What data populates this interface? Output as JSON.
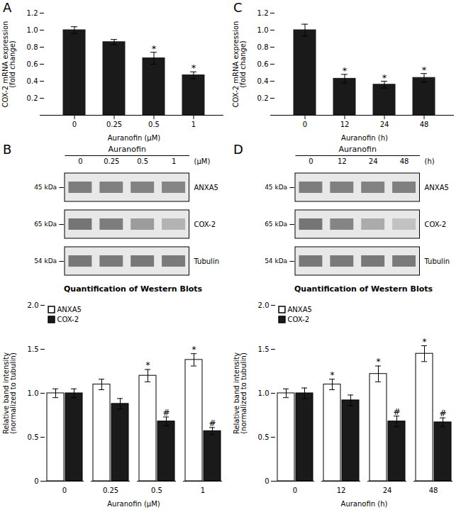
{
  "chart_data": [
    {
      "type": "bar",
      "panel_label": "A",
      "categories": [
        "0",
        "0.25",
        "0.5",
        "1"
      ],
      "values": [
        1.0,
        0.86,
        0.67,
        0.47
      ],
      "errors": [
        0.04,
        0.03,
        0.07,
        0.04
      ],
      "significant": [
        false,
        false,
        true,
        true
      ],
      "significance_label": "*",
      "color": "#1a1a1a",
      "xlabel": "Auranofin (μM)",
      "ylabel": "COX-2 mRNA expression\n(fold change)",
      "ylim": [
        0,
        1.2
      ],
      "yticks": [
        {
          "value": 0,
          "label": null
        },
        0.2,
        0.4,
        0.6,
        0.8,
        {
          "value": 1.0,
          "label": "1.0"
        },
        1.2
      ]
    },
    {
      "type": "bar",
      "panel_label": "C",
      "categories": [
        "0",
        "12",
        "24",
        "48"
      ],
      "values": [
        1.0,
        0.43,
        0.36,
        0.44
      ],
      "errors": [
        0.07,
        0.05,
        0.04,
        0.05
      ],
      "significant": [
        false,
        true,
        true,
        true
      ],
      "significance_label": "*",
      "color": "#1a1a1a",
      "xlabel": "Auranofin (h)",
      "ylabel": "COX-2 mRNA expression\n(fold change)",
      "ylim": [
        0,
        1.2
      ],
      "yticks": [
        {
          "value": 0,
          "label": null
        },
        0.2,
        0.4,
        0.6,
        0.8,
        {
          "value": 1.0,
          "label": "1.0"
        },
        1.2
      ]
    },
    {
      "type": "western_blot",
      "panel_label": "B",
      "header": "Auranofin",
      "lanes": [
        "0",
        "0.25",
        "0.5",
        "1"
      ],
      "unit": "(μM)",
      "bands": [
        {
          "name": "ANXA5",
          "kda": "45 kDa",
          "intensities": [
            0.85,
            0.83,
            0.82,
            0.8
          ]
        },
        {
          "name": "COX-2",
          "kda": "65 kDa",
          "intensities": [
            0.9,
            0.85,
            0.65,
            0.5
          ]
        },
        {
          "name": "Tubulin",
          "kda": "54 kDa",
          "intensities": [
            0.88,
            0.87,
            0.88,
            0.87
          ]
        }
      ]
    },
    {
      "type": "western_blot",
      "panel_label": "D",
      "header": "Auranofin",
      "lanes": [
        "0",
        "12",
        "24",
        "48"
      ],
      "unit": "(h)",
      "bands": [
        {
          "name": "ANXA5",
          "kda": "45 kDa",
          "intensities": [
            0.85,
            0.83,
            0.82,
            0.83
          ]
        },
        {
          "name": "COX-2",
          "kda": "65 kDa",
          "intensities": [
            0.9,
            0.8,
            0.55,
            0.4
          ]
        },
        {
          "name": "Tubulin",
          "kda": "54 kDa",
          "intensities": [
            0.88,
            0.87,
            0.88,
            0.87
          ]
        }
      ]
    },
    {
      "type": "bar",
      "title": "Quantification of Western Blots",
      "categories": [
        "0",
        "0.25",
        "0.5",
        "1"
      ],
      "series": [
        {
          "name": "ANXA5",
          "color": "#ffffff",
          "values": [
            1.0,
            1.1,
            1.2,
            1.38
          ],
          "errors": [
            0.05,
            0.06,
            0.07,
            0.07
          ],
          "significant": [
            false,
            false,
            true,
            true
          ],
          "significance_label": "*"
        },
        {
          "name": "COX-2",
          "color": "#1a1a1a",
          "values": [
            1.0,
            0.88,
            0.68,
            0.57
          ],
          "errors": [
            0.05,
            0.06,
            0.05,
            0.04
          ],
          "significant": [
            false,
            false,
            true,
            true
          ],
          "significance_label": "#"
        }
      ],
      "xlabel": "Auranofin (μM)",
      "ylabel": "Relative band intensity\n(normalized to tubulin)",
      "ylim": [
        0,
        2.0
      ],
      "yticks": [
        0,
        0.5,
        {
          "value": 1.0,
          "label": "1.0"
        },
        1.5,
        {
          "value": 2.0,
          "label": "2.0"
        }
      ],
      "legend": "upper left"
    },
    {
      "type": "bar",
      "title": "Quantification of Western Blots",
      "categories": [
        "0",
        "12",
        "24",
        "48"
      ],
      "series": [
        {
          "name": "ANXA5",
          "color": "#ffffff",
          "values": [
            1.0,
            1.1,
            1.22,
            1.45
          ],
          "errors": [
            0.05,
            0.06,
            0.09,
            0.09
          ],
          "significant": [
            false,
            true,
            true,
            true
          ],
          "significance_label": "*"
        },
        {
          "name": "COX-2",
          "color": "#1a1a1a",
          "values": [
            1.0,
            0.92,
            0.68,
            0.67
          ],
          "errors": [
            0.06,
            0.06,
            0.06,
            0.05
          ],
          "significant": [
            false,
            false,
            true,
            true
          ],
          "significance_label": "#"
        }
      ],
      "xlabel": "Auranofin (h)",
      "ylabel": "Relative band intensity\n(normalized to tubulin)",
      "ylim": [
        0,
        2.0
      ],
      "yticks": [
        0,
        0.5,
        {
          "value": 1.0,
          "label": "1.0"
        },
        1.5,
        {
          "value": 2.0,
          "label": "2.0"
        }
      ],
      "legend": "upper left"
    }
  ]
}
